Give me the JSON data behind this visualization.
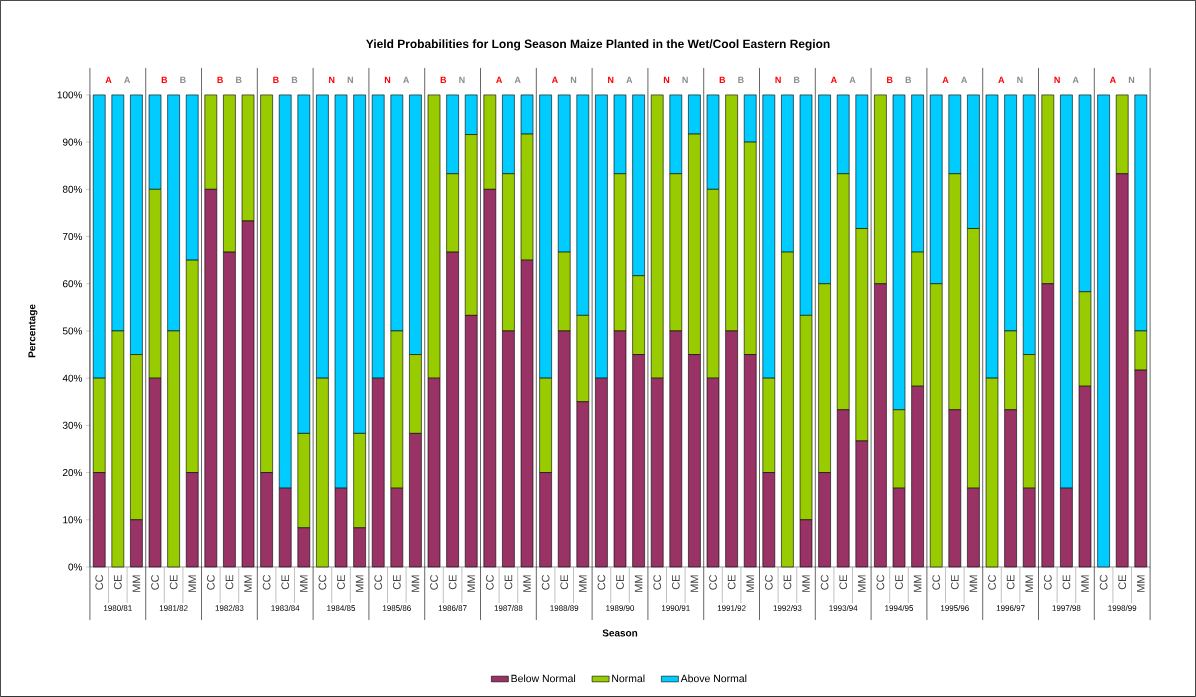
{
  "chart_data": {
    "type": "bar",
    "stacked": true,
    "title": "Yield Probabilities for Long Season Maize Planted in the Wet/Cool Eastern Region",
    "xlabel": "Season",
    "ylabel": "Percentage",
    "categories": [
      "CC",
      "CE",
      "MM",
      "CC",
      "CE",
      "MM",
      "CC",
      "CE",
      "MM",
      "CC",
      "CE",
      "MM",
      "CC",
      "CE",
      "MM",
      "CC",
      "CE",
      "MM",
      "CC",
      "CE",
      "MM",
      "CC",
      "CE",
      "MM",
      "CC",
      "CE",
      "MM",
      "CC",
      "CE",
      "MM",
      "CC",
      "CE",
      "MM",
      "CC",
      "CE",
      "MM",
      "CC",
      "CE",
      "MM",
      "CC",
      "CE",
      "MM",
      "CC",
      "CE",
      "MM",
      "CC",
      "CE",
      "MM",
      "CC",
      "CE",
      "MM",
      "CC",
      "CE",
      "MM",
      "CC",
      "CE",
      "MM"
    ],
    "series": [
      {
        "name": "Below Normal",
        "color": "#993366",
        "values": [
          20,
          0,
          10,
          40,
          0,
          20,
          80,
          66.7,
          73.3,
          20,
          16.7,
          8.3,
          0,
          16.7,
          8.3,
          40,
          16.7,
          28.3,
          40,
          66.7,
          53.3,
          80,
          50,
          65,
          20,
          50,
          35,
          40,
          50,
          45,
          40,
          50,
          45,
          40,
          50,
          45,
          20,
          0,
          10,
          20,
          33.3,
          26.7,
          60,
          16.7,
          38.3,
          0,
          33.3,
          16.7,
          0,
          33.3,
          16.7,
          60,
          16.7,
          38.3,
          0,
          83.3,
          41.7
        ]
      },
      {
        "name": "Normal",
        "color": "#99cc00",
        "values": [
          20,
          50,
          35,
          40,
          50,
          45,
          20,
          33.3,
          26.7,
          80,
          0,
          20,
          40,
          0,
          20,
          0,
          33.3,
          16.7,
          60,
          16.6,
          38.3,
          20,
          33.3,
          26.7,
          20,
          16.7,
          18.3,
          0,
          33.3,
          16.7,
          60,
          33.3,
          46.7,
          40,
          50,
          45,
          20,
          66.7,
          43.3,
          40,
          50,
          45,
          40,
          16.6,
          28.4,
          60,
          50,
          55,
          40,
          16.7,
          28.3,
          40,
          0,
          20,
          0,
          16.7,
          8.3
        ]
      },
      {
        "name": "Above Normal",
        "color": "#00ccff",
        "values": [
          60,
          50,
          55,
          20,
          50,
          35,
          0,
          0,
          0,
          0,
          83.3,
          71.7,
          60,
          83.3,
          71.7,
          60,
          50,
          55,
          0,
          16.7,
          8.4,
          0,
          16.7,
          8.3,
          60,
          33.3,
          46.7,
          60,
          16.7,
          38.3,
          0,
          16.7,
          8.3,
          20,
          0,
          10,
          60,
          33.3,
          46.7,
          40,
          16.7,
          28.3,
          0,
          66.7,
          33.3,
          40,
          16.7,
          28.3,
          60,
          50,
          55,
          0,
          83.3,
          41.7,
          100,
          0,
          50
        ]
      }
    ],
    "ylim": [
      0,
      100
    ],
    "yticks": [
      {
        "value": 0,
        "label": "0%"
      },
      {
        "value": 10,
        "label": "10%"
      },
      {
        "value": 20,
        "label": "20%"
      },
      {
        "value": 30,
        "label": "30%"
      },
      {
        "value": 40,
        "label": "40%"
      },
      {
        "value": 50,
        "label": "50%"
      },
      {
        "value": 60,
        "label": "60%"
      },
      {
        "value": 70,
        "label": "70%"
      },
      {
        "value": 80,
        "label": "80%"
      },
      {
        "value": 90,
        "label": "90%"
      },
      {
        "value": 100,
        "label": "100%"
      }
    ],
    "grid": false,
    "legend": "bottom",
    "annotations": [
      "1980/81",
      "1981/82",
      "1982/83",
      "1983/84",
      "1984/85",
      "1985/86",
      "1986/87",
      "1987/88",
      "1988/89",
      "1989/90",
      "1990/91",
      "1991/92",
      "1992/93",
      "1993/94",
      "1994/95",
      "1995/96",
      "1996/97",
      "1997/98",
      "1998/99",
      "A",
      "A",
      "B",
      "B",
      "B",
      "B",
      "B",
      "B",
      "N",
      "N",
      "N",
      "A",
      "B",
      "N",
      "A",
      "A",
      "A",
      "N",
      "N",
      "A",
      "N",
      "N",
      "B",
      "B",
      "N",
      "B",
      "A",
      "A",
      "B",
      "B",
      "A",
      "A",
      "A",
      "N",
      "N",
      "A",
      "A",
      "N"
    ]
  }
}
